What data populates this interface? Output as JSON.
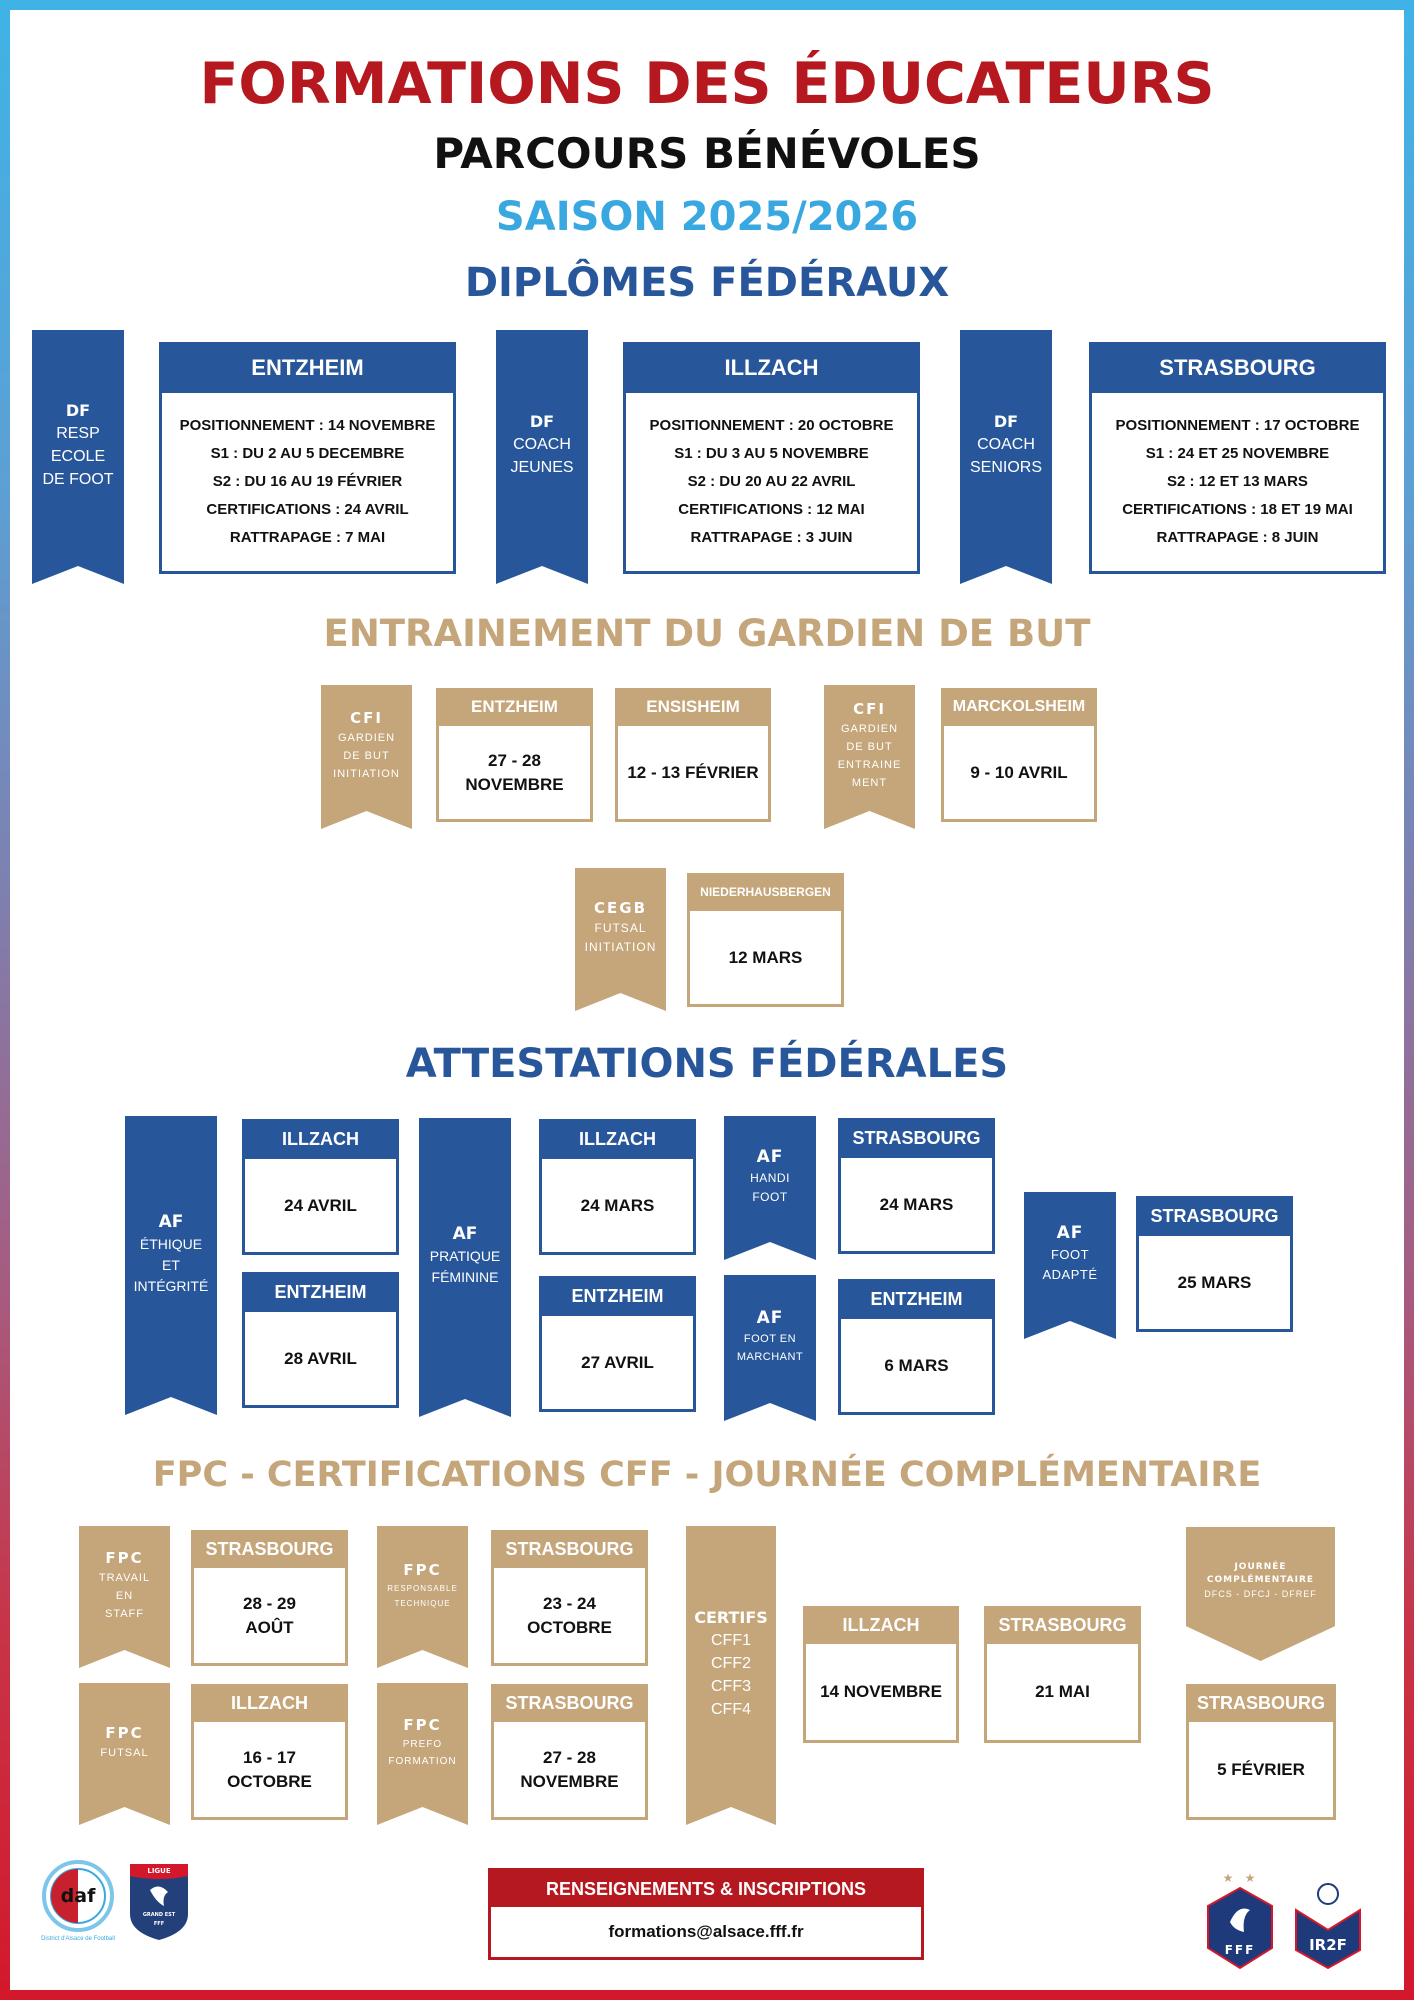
{
  "colors": {
    "red": "#b5181e",
    "black": "#111111",
    "light_blue": "#3aa8e0",
    "blue": "#27569a",
    "tan": "#c5a57a"
  },
  "header": {
    "title": "FORMATIONS DES ÉDUCATEURS",
    "subtitle": "PARCOURS BÉNÉVOLES",
    "season": "SAISON 2025/2026"
  },
  "diplomes": {
    "title": "DIPLÔMES FÉDÉRAUX",
    "ribbons": [
      {
        "title": "DF",
        "lines": [
          "RESP",
          "ECOLE",
          "DE FOOT"
        ]
      },
      {
        "title": "DF",
        "lines": [
          "COACH",
          "JEUNES"
        ]
      },
      {
        "title": "DF",
        "lines": [
          "COACH",
          "SENIORS"
        ]
      }
    ],
    "boxes": [
      {
        "header": "ENTZHEIM",
        "lines": [
          "POSITIONNEMENT : 14 NOVEMBRE",
          "S1 : DU 2 AU 5 DECEMBRE",
          "S2 : DU 16 AU 19 FÉVRIER",
          "CERTIFICATIONS : 24 AVRIL",
          "RATTRAPAGE : 7 MAI"
        ]
      },
      {
        "header": "ILLZACH",
        "lines": [
          "POSITIONNEMENT : 20 OCTOBRE",
          "S1 : DU 3 AU 5 NOVEMBRE",
          "S2 : DU 20 AU 22 AVRIL",
          "CERTIFICATIONS : 12 MAI",
          "RATTRAPAGE : 3 JUIN"
        ]
      },
      {
        "header": "STRASBOURG",
        "lines": [
          "POSITIONNEMENT : 17 OCTOBRE",
          "S1 : 24 ET 25 NOVEMBRE",
          "S2 : 12 ET 13 MARS",
          "CERTIFICATIONS : 18 ET 19 MAI",
          "RATTRAPAGE : 8 JUIN"
        ]
      }
    ]
  },
  "gardien": {
    "title": "ENTRAINEMENT DU GARDIEN DE BUT",
    "ribbons": [
      {
        "title": "CFI",
        "lines": [
          "GARDIEN",
          "DE BUT",
          "INITIATION"
        ]
      },
      {
        "title": "CFI",
        "lines": [
          "GARDIEN",
          "DE BUT",
          "ENTRAINE",
          "MENT"
        ]
      },
      {
        "title": "CEGB",
        "lines": [
          "FUTSAL",
          "INITIATION"
        ]
      }
    ],
    "boxes": [
      {
        "header": "ENTZHEIM",
        "lines": [
          "27 - 28",
          "NOVEMBRE"
        ]
      },
      {
        "header": "ENSISHEIM",
        "lines": [
          "12 - 13 FÉVRIER"
        ]
      },
      {
        "header": "MARCKOLSHEIM",
        "lines": [
          "9 - 10 AVRIL"
        ]
      },
      {
        "header": "NIEDERHAUSBERGEN",
        "lines": [
          "12 MARS"
        ]
      }
    ]
  },
  "attestations": {
    "title": "ATTESTATIONS FÉDÉRALES",
    "ribbons": [
      {
        "title": "AF",
        "lines": [
          "ÉTHIQUE",
          "ET",
          "INTÉGRITÉ"
        ]
      },
      {
        "title": "AF",
        "lines": [
          "PRATIQUE",
          "FÉMININE"
        ]
      },
      {
        "title": "AF",
        "lines": [
          "HANDI",
          "FOOT"
        ]
      },
      {
        "title": "AF",
        "lines": [
          "FOOT EN",
          "MARCHANT"
        ]
      },
      {
        "title": "AF",
        "lines": [
          "FOOT",
          "ADAPTÉ"
        ]
      }
    ],
    "boxes": [
      {
        "header": "ILLZACH",
        "lines": [
          "24 AVRIL"
        ]
      },
      {
        "header": "ENTZHEIM",
        "lines": [
          "28 AVRIL"
        ]
      },
      {
        "header": "ILLZACH",
        "lines": [
          "24 MARS"
        ]
      },
      {
        "header": "ENTZHEIM",
        "lines": [
          "27 AVRIL"
        ]
      },
      {
        "header": "STRASBOURG",
        "lines": [
          "24 MARS"
        ]
      },
      {
        "header": "ENTZHEIM",
        "lines": [
          "6 MARS"
        ]
      },
      {
        "header": "STRASBOURG",
        "lines": [
          "25 MARS"
        ]
      }
    ]
  },
  "fpc": {
    "title": "FPC - CERTIFICATIONS CFF - JOURNÉE COMPLÉMENTAIRE",
    "ribbons": [
      {
        "title": "FPC",
        "lines": [
          "TRAVAIL",
          "EN",
          "STAFF"
        ]
      },
      {
        "title": "FPC",
        "lines": [
          "FUTSAL"
        ]
      },
      {
        "title": "FPC",
        "lines": [
          "RESPONSABLE",
          "TECHNIQUE"
        ]
      },
      {
        "title": "FPC",
        "lines": [
          "PREFO",
          "FORMATION"
        ]
      },
      {
        "title": "CERTIFS",
        "lines": [
          "CFF1",
          "CFF2",
          "CFF3",
          "CFF4"
        ]
      }
    ],
    "banner": {
      "lines": [
        "JOURNÉE",
        "COMPLÉMENTAIRE"
      ],
      "sub": "DFCS - DFCJ - DFREF"
    },
    "boxes": [
      {
        "header": "STRASBOURG",
        "lines": [
          "28 - 29",
          "AOÛT"
        ]
      },
      {
        "header": "ILLZACH",
        "lines": [
          "16 - 17",
          "OCTOBRE"
        ]
      },
      {
        "header": "STRASBOURG",
        "lines": [
          "23 - 24",
          "OCTOBRE"
        ]
      },
      {
        "header": "STRASBOURG",
        "lines": [
          "27 - 28",
          "NOVEMBRE"
        ]
      },
      {
        "header": "ILLZACH",
        "lines": [
          "14 NOVEMBRE"
        ]
      },
      {
        "header": "STRASBOURG",
        "lines": [
          "21 MAI"
        ]
      },
      {
        "header": "STRASBOURG",
        "lines": [
          "5 FÉVRIER"
        ]
      }
    ]
  },
  "contact": {
    "header": "RENSEIGNEMENTS & INSCRIPTIONS",
    "email": "formations@alsace.fff.fr"
  },
  "logos": {
    "daf": "daf",
    "daf_caption": "District d'Alsace de Football",
    "ligue": "LIGUE",
    "ligue_sub": "GRAND EST",
    "fff": "FFF",
    "ir2f": "IR2F"
  }
}
